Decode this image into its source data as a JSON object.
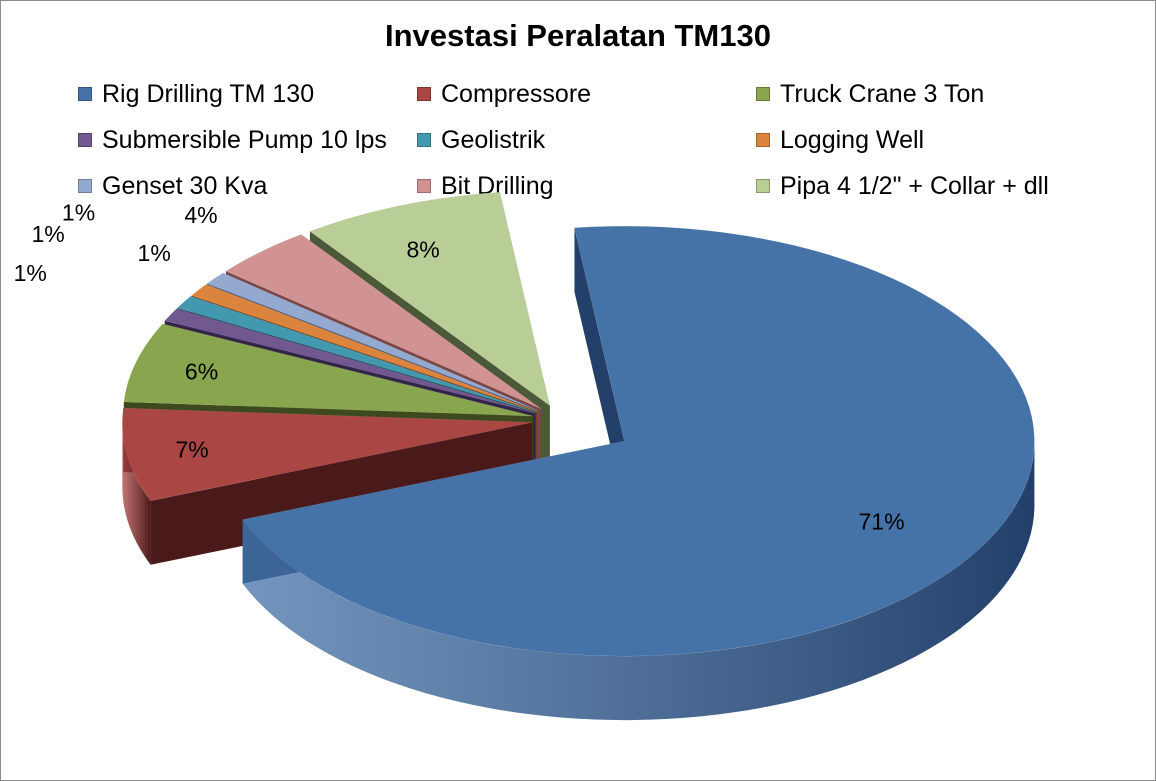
{
  "chart_data": {
    "type": "pie",
    "style": "3d-exploded",
    "title": "Investasi Peralatan TM130",
    "legend_position": "top",
    "slices": [
      {
        "label": "Rig Drilling TM 130",
        "value": 71,
        "display": "71%",
        "color": "#4572A7",
        "side": "#23406a"
      },
      {
        "label": "Compressore",
        "value": 7,
        "display": "7%",
        "color": "#AA4643",
        "side": "#4a1a1a"
      },
      {
        "label": "Truck Crane 3 Ton",
        "value": 6,
        "display": "6%",
        "color": "#89A54E",
        "side": "#3c4a1e"
      },
      {
        "label": "Submersible Pump 10 lps",
        "value": 1,
        "display": "1%",
        "color": "#71588F",
        "side": "#33254a"
      },
      {
        "label": "Geolistrik",
        "value": 1,
        "display": "1%",
        "color": "#4198AF",
        "side": "#1b4a57"
      },
      {
        "label": "Logging Well",
        "value": 1,
        "display": "1%",
        "color": "#DB843D",
        "side": "#7a4016"
      },
      {
        "label": "Genset 30 Kva",
        "value": 1,
        "display": "1%",
        "color": "#93A9CF",
        "side": "#4a5877"
      },
      {
        "label": "Bit Drilling",
        "value": 4,
        "display": "4%",
        "color": "#D19392",
        "side": "#7a4645"
      },
      {
        "label": "Pipa 4 1/2\" + Collar + dll",
        "value": 8,
        "display": "8%",
        "color": "#B9CD96",
        "side": "#4a5a38"
      }
    ]
  }
}
